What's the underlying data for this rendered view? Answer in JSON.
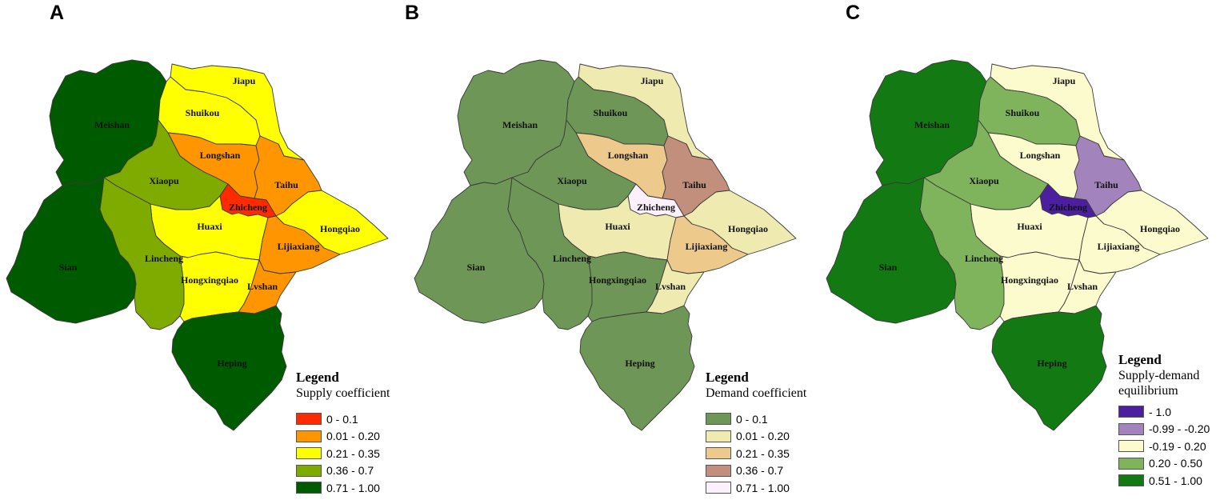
{
  "panels": [
    {
      "id": "A",
      "letter": "A",
      "legend_title": "Legend",
      "legend_subtitle": "Supply coefficient",
      "legend_items": [
        {
          "label": "0 - 0.1",
          "color": "#ff2a00"
        },
        {
          "label": "0.01 - 0.20",
          "color": "#ff9500"
        },
        {
          "label": "0.21 - 0.35",
          "color": "#ffff00"
        },
        {
          "label": "0.36 - 0.7",
          "color": "#7faa00"
        },
        {
          "label": "0.71 - 1.00",
          "color": "#005a00"
        }
      ],
      "region_classes": {
        "Meishan": 4,
        "Sian": 4,
        "Heping": 4,
        "Xiaopu": 3,
        "Lincheng": 3,
        "Jiapu": 2,
        "Shuikou": 2,
        "Huaxi": 2,
        "Hongxingqiao": 2,
        "Hongqiao": 2,
        "Longshan": 1,
        "Taihu": 1,
        "Lijiaxiang": 1,
        "Lvshan": 1,
        "Zhicheng": 0
      }
    },
    {
      "id": "B",
      "letter": "B",
      "legend_title": "Legend",
      "legend_subtitle": "Demand coefficient",
      "legend_items": [
        {
          "label": "0 - 0.1",
          "color": "#6e9657"
        },
        {
          "label": "0.01 - 0.20",
          "color": "#efeab0"
        },
        {
          "label": "0.21 - 0.35",
          "color": "#edc98c"
        },
        {
          "label": "0.36 - 0.7",
          "color": "#c18f7c"
        },
        {
          "label": "0.71 - 1.00",
          "color": "#fbf0fb"
        }
      ],
      "region_classes": {
        "Meishan": 0,
        "Sian": 0,
        "Heping": 0,
        "Xiaopu": 0,
        "Lincheng": 0,
        "Shuikou": 0,
        "Hongxingqiao": 0,
        "Jiapu": 1,
        "Huaxi": 1,
        "Hongqiao": 1,
        "Lvshan": 1,
        "Longshan": 2,
        "Lijiaxiang": 2,
        "Taihu": 3,
        "Zhicheng": 4
      }
    },
    {
      "id": "C",
      "letter": "C",
      "legend_title": "Legend",
      "legend_subtitle": "Supply-demand equilibrium",
      "legend_items": [
        {
          "label": "- 1.0",
          "color": "#4b1fa0"
        },
        {
          "label": "-0.99 - -0.20",
          "color": "#a383bb"
        },
        {
          "label": "-0.19 - 0.20",
          "color": "#fcfbcd"
        },
        {
          "label": "0.20  - 0.50",
          "color": "#7fb45c"
        },
        {
          "label": "0.51  - 1.00",
          "color": "#137a13"
        }
      ],
      "region_classes": {
        "Meishan": 4,
        "Sian": 4,
        "Heping": 4,
        "Shuikou": 3,
        "Xiaopu": 3,
        "Lincheng": 3,
        "Jiapu": 2,
        "Longshan": 2,
        "Huaxi": 2,
        "Hongqiao": 2,
        "Lijiaxiang": 2,
        "Hongxingqiao": 2,
        "Lvshan": 2,
        "Taihu": 1,
        "Zhicheng": 0
      }
    }
  ],
  "region_labels": {
    "Jiapu": "Jiapu",
    "Shuikou": "Shuikou",
    "Meishan": "Meishan",
    "Longshan": "Longshan",
    "Taihu": "Taihu",
    "Xiaopu": "Xiaopu",
    "Zhicheng": "Zhicheng",
    "Hongqiao": "Hongqiao",
    "Huaxi": "Huaxi",
    "Lijiaxiang": "Lijiaxiang",
    "Sian": "Sian",
    "Lincheng": "Lincheng",
    "Hongxingqiao": "Hongxingqiao",
    "Lvshan": "Lvshan",
    "Heping": "Heping"
  }
}
